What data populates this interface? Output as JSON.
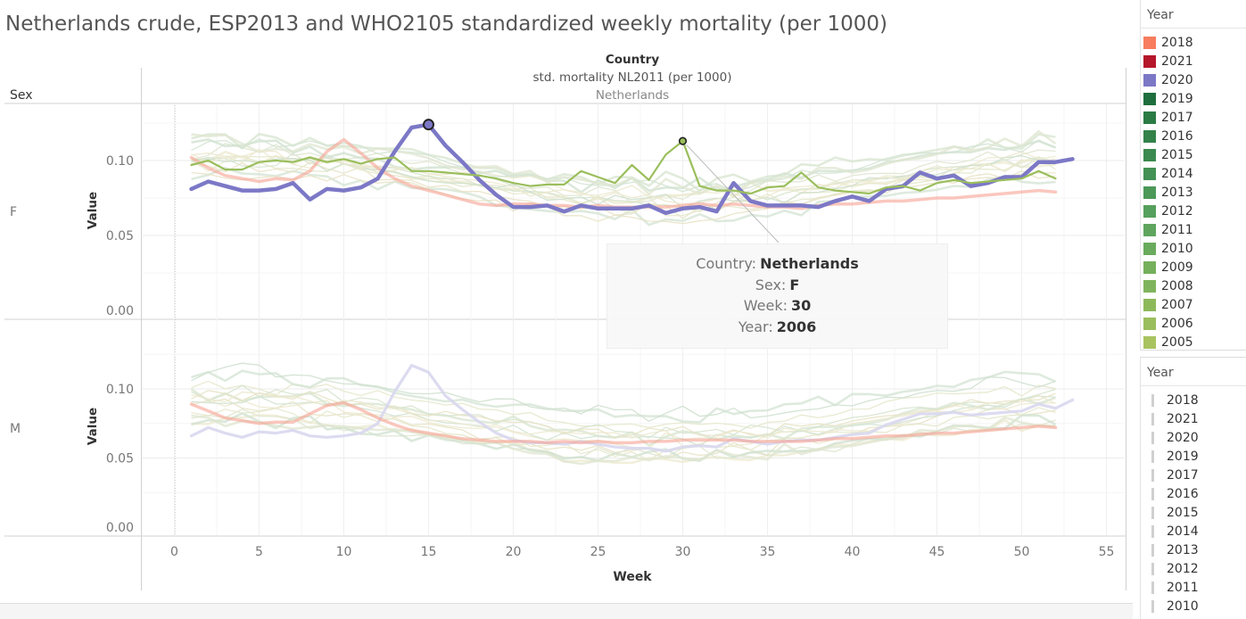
{
  "title": "Netherlands crude, ESP2013 and WHO2105 standardized weekly mortality (per 1000)",
  "header": {
    "column_title": "Country",
    "measure_label": "std. mortality NL2011  (per 1000)",
    "country": "Netherlands",
    "row_title": "Sex"
  },
  "tooltip": {
    "rows": [
      {
        "label": "Country:",
        "value": "Netherlands"
      },
      {
        "label": "Sex:",
        "value": "F"
      },
      {
        "label": "Week:",
        "value": "30"
      },
      {
        "label": "Year:",
        "value": "2006"
      }
    ]
  },
  "legend_color": {
    "title": "Year",
    "items": [
      {
        "label": "2018",
        "color": "#f87c5e"
      },
      {
        "label": "2021",
        "color": "#b5162a"
      },
      {
        "label": "2020",
        "color": "#7c78c6"
      },
      {
        "label": "2019",
        "color": "#1f6e3d"
      },
      {
        "label": "2017",
        "color": "#2b7b44"
      },
      {
        "label": "2016",
        "color": "#33824a"
      },
      {
        "label": "2015",
        "color": "#3b8a4f"
      },
      {
        "label": "2014",
        "color": "#439154"
      },
      {
        "label": "2013",
        "color": "#4b9858"
      },
      {
        "label": "2012",
        "color": "#55a05c"
      },
      {
        "label": "2011",
        "color": "#5fa55e"
      },
      {
        "label": "2010",
        "color": "#6aab5d"
      },
      {
        "label": "2009",
        "color": "#75b05c"
      },
      {
        "label": "2008",
        "color": "#80b45c"
      },
      {
        "label": "2007",
        "color": "#8db95b"
      },
      {
        "label": "2006",
        "color": "#9abe5c"
      },
      {
        "label": "2005",
        "color": "#a8c35f"
      }
    ]
  },
  "legend_filter": {
    "title": "Year",
    "items": [
      "2018",
      "2021",
      "2020",
      "2019",
      "2017",
      "2016",
      "2015",
      "2014",
      "2013",
      "2012",
      "2011",
      "2010"
    ]
  },
  "chart_data": {
    "type": "line",
    "title": "Netherlands crude, ESP2013 and WHO2105 standardized weekly mortality (per 1000)",
    "xlabel": "Week",
    "ylabel": "Value",
    "xlim": [
      -2,
      56
    ],
    "ylim": [
      0,
      0.14
    ],
    "xticks": [
      0,
      5,
      10,
      15,
      20,
      25,
      30,
      35,
      40,
      45,
      50,
      55
    ],
    "yticks": [
      0,
      0.05,
      0.1
    ],
    "ytick_labels": [
      "0.00",
      "0.05",
      "0.10"
    ],
    "grid": true,
    "legend": "right",
    "panels": [
      {
        "row": "F",
        "series": [
          {
            "name": "2020",
            "color": "#7c78c6",
            "highlighted": true,
            "x": [
              1,
              2,
              3,
              4,
              5,
              6,
              7,
              8,
              9,
              10,
              11,
              12,
              13,
              14,
              15,
              16,
              17,
              18,
              19,
              20,
              21,
              22,
              23,
              24,
              25,
              26,
              27,
              28,
              29,
              30,
              31,
              32,
              33,
              34,
              35,
              36,
              37,
              38,
              39,
              40,
              41,
              42,
              43,
              44,
              45,
              46,
              47,
              48,
              49,
              50,
              51,
              52,
              53
            ],
            "y": [
              0.081,
              0.086,
              0.083,
              0.08,
              0.08,
              0.081,
              0.085,
              0.074,
              0.081,
              0.08,
              0.082,
              0.088,
              0.106,
              0.122,
              0.124,
              0.11,
              0.099,
              0.087,
              0.077,
              0.069,
              0.069,
              0.07,
              0.066,
              0.07,
              0.068,
              0.068,
              0.068,
              0.07,
              0.065,
              0.068,
              0.069,
              0.066,
              0.085,
              0.073,
              0.07,
              0.07,
              0.07,
              0.069,
              0.073,
              0.076,
              0.073,
              0.081,
              0.083,
              0.092,
              0.088,
              0.09,
              0.083,
              0.085,
              0.089,
              0.089,
              0.099,
              0.099,
              0.101
            ]
          },
          {
            "name": "2006",
            "color": "#9abe5c",
            "highlighted": true,
            "x": [
              1,
              2,
              3,
              4,
              5,
              6,
              7,
              8,
              9,
              10,
              11,
              12,
              13,
              14,
              15,
              16,
              17,
              18,
              19,
              20,
              21,
              22,
              23,
              24,
              25,
              26,
              27,
              28,
              29,
              30,
              31,
              32,
              33,
              34,
              35,
              36,
              37,
              38,
              39,
              40,
              41,
              42,
              43,
              44,
              45,
              46,
              47,
              48,
              49,
              50,
              51,
              52
            ],
            "y": [
              0.097,
              0.1,
              0.094,
              0.094,
              0.099,
              0.1,
              0.099,
              0.102,
              0.099,
              0.101,
              0.098,
              0.101,
              0.102,
              0.093,
              0.093,
              0.092,
              0.091,
              0.09,
              0.088,
              0.085,
              0.083,
              0.084,
              0.084,
              0.093,
              0.089,
              0.085,
              0.097,
              0.087,
              0.104,
              0.113,
              0.083,
              0.08,
              0.08,
              0.078,
              0.082,
              0.083,
              0.092,
              0.082,
              0.08,
              0.079,
              0.078,
              0.082,
              0.083,
              0.08,
              0.085,
              0.087,
              0.085,
              0.086,
              0.087,
              0.088,
              0.093,
              0.088
            ]
          },
          {
            "name": "2018",
            "color": "#f6a192",
            "highlighted": false,
            "x": [
              1,
              2,
              3,
              4,
              5,
              6,
              7,
              8,
              9,
              10,
              11,
              12,
              13,
              14,
              15,
              16,
              17,
              18,
              19,
              20,
              21,
              22,
              23,
              24,
              25,
              26,
              27,
              28,
              29,
              30,
              31,
              32,
              33,
              34,
              35,
              36,
              37,
              38,
              39,
              40,
              41,
              42,
              43,
              44,
              45,
              46,
              47,
              48,
              49,
              50,
              51,
              52
            ],
            "y": [
              0.102,
              0.095,
              0.09,
              0.088,
              0.086,
              0.088,
              0.087,
              0.093,
              0.106,
              0.114,
              0.105,
              0.095,
              0.088,
              0.083,
              0.08,
              0.077,
              0.074,
              0.071,
              0.07,
              0.071,
              0.071,
              0.07,
              0.07,
              0.069,
              0.07,
              0.069,
              0.069,
              0.069,
              0.069,
              0.07,
              0.071,
              0.07,
              0.071,
              0.07,
              0.069,
              0.069,
              0.068,
              0.07,
              0.071,
              0.071,
              0.072,
              0.073,
              0.073,
              0.074,
              0.075,
              0.075,
              0.076,
              0.077,
              0.078,
              0.079,
              0.08,
              0.079
            ]
          }
        ]
      },
      {
        "row": "M",
        "series": [
          {
            "name": "2020",
            "color": "#d8d7ee",
            "highlighted": false,
            "x": [
              1,
              2,
              3,
              4,
              5,
              6,
              7,
              8,
              9,
              10,
              11,
              12,
              13,
              14,
              15,
              16,
              17,
              18,
              19,
              20,
              21,
              22,
              23,
              24,
              25,
              26,
              27,
              28,
              29,
              30,
              31,
              32,
              33,
              34,
              35,
              36,
              37,
              38,
              39,
              40,
              41,
              42,
              43,
              44,
              45,
              46,
              47,
              48,
              49,
              50,
              51,
              52,
              53
            ],
            "y": [
              0.066,
              0.072,
              0.068,
              0.065,
              0.069,
              0.068,
              0.07,
              0.066,
              0.065,
              0.066,
              0.068,
              0.075,
              0.098,
              0.117,
              0.112,
              0.095,
              0.085,
              0.076,
              0.068,
              0.063,
              0.061,
              0.061,
              0.06,
              0.062,
              0.06,
              0.058,
              0.057,
              0.057,
              0.055,
              0.058,
              0.059,
              0.058,
              0.064,
              0.062,
              0.06,
              0.062,
              0.063,
              0.063,
              0.065,
              0.067,
              0.068,
              0.074,
              0.078,
              0.082,
              0.082,
              0.083,
              0.081,
              0.082,
              0.083,
              0.084,
              0.089,
              0.086,
              0.092
            ]
          },
          {
            "name": "2018",
            "color": "#f6a192",
            "highlighted": false,
            "x": [
              1,
              2,
              3,
              4,
              5,
              6,
              7,
              8,
              9,
              10,
              11,
              12,
              13,
              14,
              15,
              16,
              17,
              18,
              19,
              20,
              21,
              22,
              23,
              24,
              25,
              26,
              27,
              28,
              29,
              30,
              31,
              32,
              33,
              34,
              35,
              36,
              37,
              38,
              39,
              40,
              41,
              42,
              43,
              44,
              45,
              46,
              47,
              48,
              49,
              50,
              51,
              52
            ],
            "y": [
              0.089,
              0.084,
              0.079,
              0.077,
              0.075,
              0.076,
              0.076,
              0.082,
              0.088,
              0.09,
              0.085,
              0.079,
              0.074,
              0.07,
              0.068,
              0.066,
              0.064,
              0.063,
              0.062,
              0.062,
              0.062,
              0.061,
              0.062,
              0.061,
              0.062,
              0.061,
              0.061,
              0.062,
              0.062,
              0.063,
              0.063,
              0.063,
              0.063,
              0.062,
              0.062,
              0.062,
              0.062,
              0.063,
              0.064,
              0.064,
              0.065,
              0.066,
              0.066,
              0.067,
              0.068,
              0.068,
              0.069,
              0.07,
              0.071,
              0.072,
              0.073,
              0.072
            ]
          }
        ]
      }
    ]
  }
}
